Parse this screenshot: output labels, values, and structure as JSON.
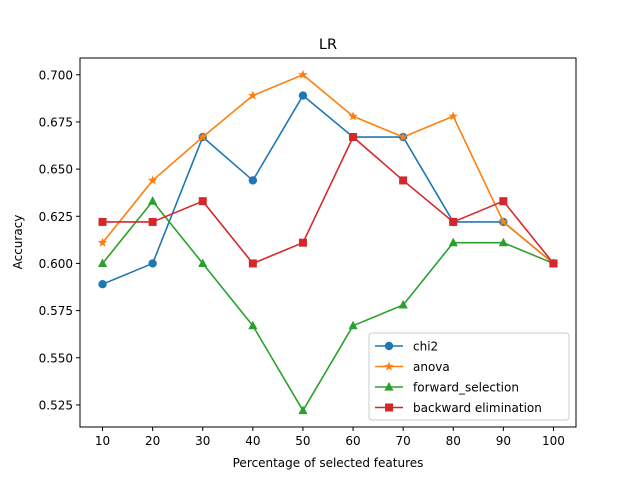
{
  "chart_data": {
    "type": "line",
    "title": "LR",
    "xlabel": "Percentage of selected features",
    "ylabel": "Accuracy",
    "x": [
      10,
      20,
      30,
      40,
      50,
      60,
      70,
      80,
      90,
      100
    ],
    "xlim": [
      5.5,
      104.5
    ],
    "ylim": [
      0.5133,
      0.7089
    ],
    "yticks": [
      0.525,
      0.55,
      0.575,
      0.6,
      0.625,
      0.65,
      0.675,
      0.7
    ],
    "ytick_labels": [
      "0.525",
      "0.550",
      "0.575",
      "0.600",
      "0.625",
      "0.650",
      "0.675",
      "0.700"
    ],
    "xtick_labels": [
      "10",
      "20",
      "30",
      "40",
      "50",
      "60",
      "70",
      "80",
      "90",
      "100"
    ],
    "grid": false,
    "legend_position": "bottom-right",
    "series": [
      {
        "name": "chi2",
        "color": "#1f77b4",
        "marker": "circle",
        "values": [
          0.589,
          0.6,
          0.667,
          0.644,
          0.689,
          0.667,
          0.667,
          0.622,
          0.622,
          0.6
        ]
      },
      {
        "name": "anova",
        "color": "#ff7f0e",
        "marker": "star",
        "values": [
          0.611,
          0.644,
          0.667,
          0.689,
          0.7,
          0.678,
          0.667,
          0.678,
          0.622,
          0.6
        ]
      },
      {
        "name": "forward_selection",
        "color": "#2ca02c",
        "marker": "triangle",
        "values": [
          0.6,
          0.633,
          0.6,
          0.567,
          0.522,
          0.567,
          0.578,
          0.611,
          0.611,
          0.6
        ]
      },
      {
        "name": "backward elimination",
        "color": "#d62728",
        "marker": "square",
        "values": [
          0.622,
          0.622,
          0.633,
          0.6,
          0.611,
          0.667,
          0.644,
          0.622,
          0.633,
          0.6
        ]
      }
    ]
  }
}
